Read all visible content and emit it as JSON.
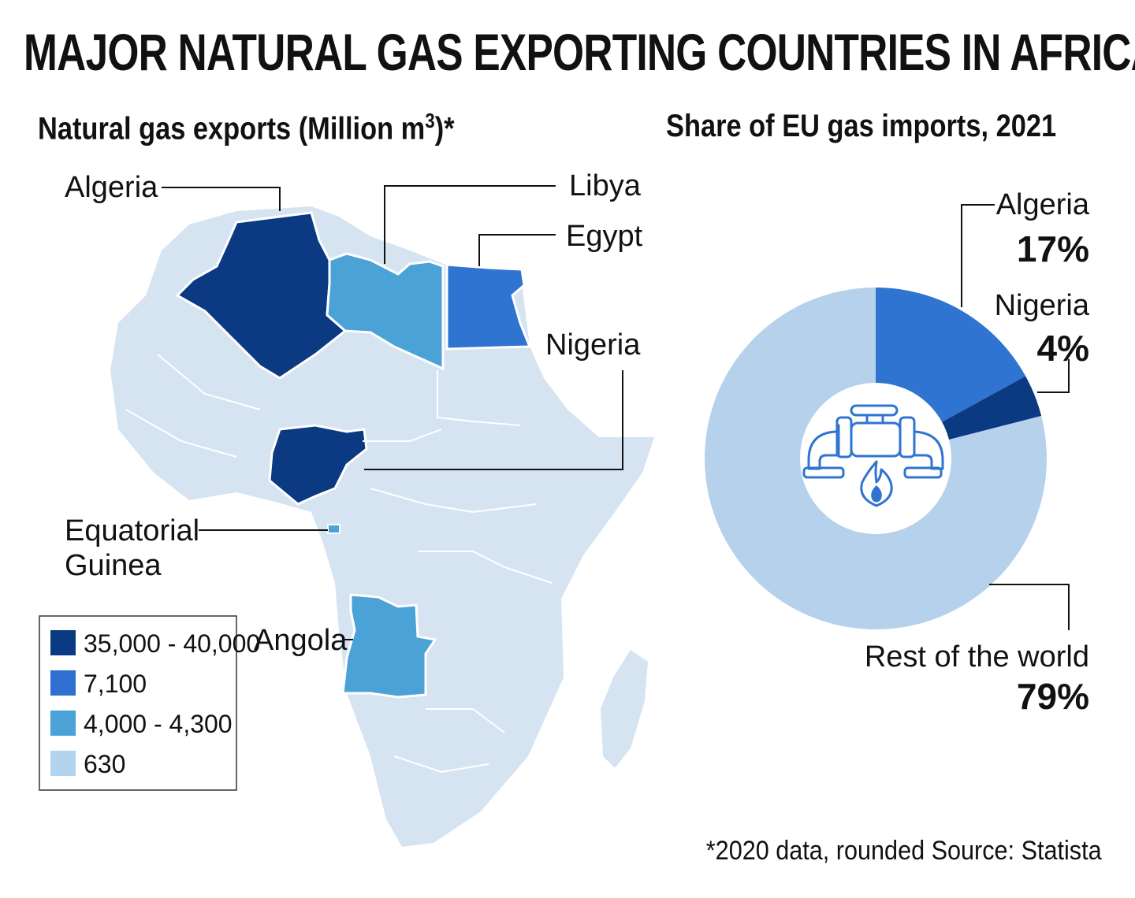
{
  "title": "MAJOR NATURAL GAS EXPORTING COUNTRIES IN AFRICA",
  "map": {
    "subtitle_main": "Natural gas exports (Million m",
    "subtitle_sup": "3",
    "subtitle_tail": ")*",
    "labels": {
      "algeria": "Algeria",
      "libya": "Libya",
      "egypt": "Egypt",
      "nigeria": "Nigeria",
      "eq_guinea_1": "Equatorial",
      "eq_guinea_2": "Guinea",
      "angola": "Angola"
    },
    "legend": [
      {
        "label": "35,000 - 40,000",
        "color": "#0b3a82"
      },
      {
        "label": "7,100",
        "color": "#2f6fd0"
      },
      {
        "label": "4,000 - 4,300",
        "color": "#4ba2d6"
      },
      {
        "label": "630",
        "color": "#b3d4ee"
      }
    ],
    "base_color": "#d6e4f2",
    "country_classes": {
      "Algeria": "35,000 - 40,000",
      "Nigeria": "35,000 - 40,000",
      "Egypt": "7,100",
      "Libya": "4,000 - 4,300",
      "Angola": "4,000 - 4,300",
      "Equatorial Guinea": "4,000 - 4,300"
    }
  },
  "pie": {
    "subtitle": "Share of EU gas imports, 2021",
    "icon": "gas-pipeline-flame-icon"
  },
  "chart_data": {
    "type": "pie",
    "title": "Share of EU gas imports, 2021",
    "slices": [
      {
        "label": "Algeria",
        "value": 17,
        "value_label": "17%",
        "color": "#2f74d0"
      },
      {
        "label": "Nigeria",
        "value": 4,
        "value_label": "4%",
        "color": "#0b3a82"
      },
      {
        "label": "Rest of the world",
        "value": 79,
        "value_label": "79%",
        "color": "#b6d1eb"
      }
    ]
  },
  "footnote": "*2020 data, rounded Source: Statista"
}
